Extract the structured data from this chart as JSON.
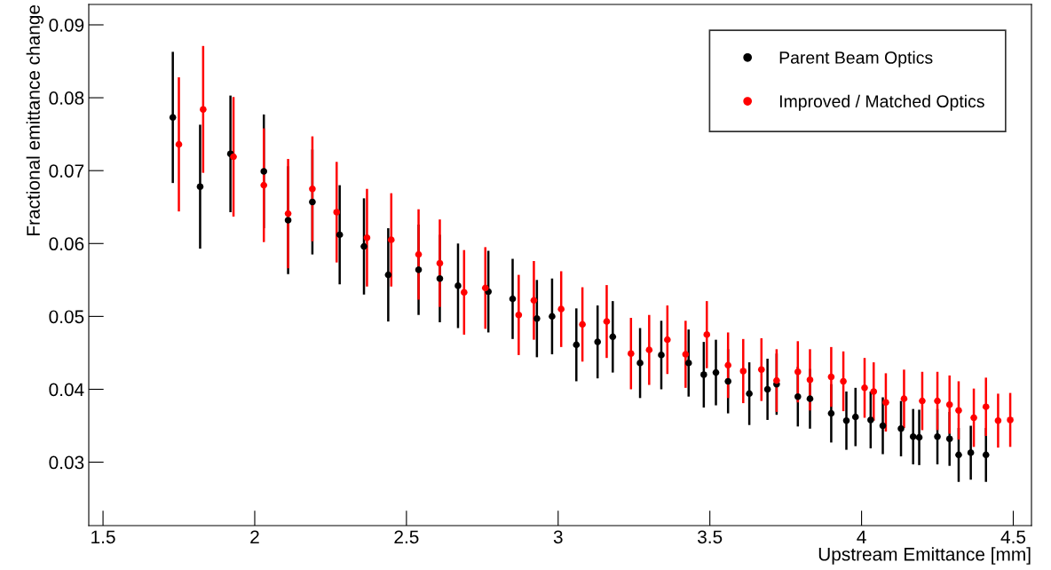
{
  "chart_data": {
    "type": "scatter",
    "xlabel": "Upstream Emittance [mm]",
    "ylabel": "Fractional emittance change",
    "xlim": [
      1.453,
      4.56
    ],
    "ylim": [
      0.0213,
      0.0928
    ],
    "xticks": [
      1.5,
      2,
      2.5,
      3,
      3.5,
      4,
      4.5
    ],
    "yticks": [
      0.03,
      0.04,
      0.05,
      0.06,
      0.07,
      0.08,
      0.09
    ],
    "grid": false,
    "legend": "top right",
    "marker": "circle",
    "series": [
      {
        "name": "Parent Beam Optics",
        "color": "#000000",
        "x": [
          1.73,
          1.82,
          1.92,
          2.03,
          2.11,
          2.19,
          2.28,
          2.36,
          2.44,
          2.54,
          2.61,
          2.67,
          2.77,
          2.85,
          2.93,
          2.98,
          3.06,
          3.13,
          3.18,
          3.27,
          3.34,
          3.43,
          3.48,
          3.52,
          3.56,
          3.63,
          3.69,
          3.72,
          3.79,
          3.83,
          3.9,
          3.95,
          3.98,
          4.03,
          4.07,
          4.13,
          4.17,
          4.19,
          4.25,
          4.29,
          4.32,
          4.36,
          4.41
        ],
        "values": [
          0.0773,
          0.0678,
          0.0723,
          0.0699,
          0.0632,
          0.0657,
          0.0612,
          0.0596,
          0.0557,
          0.0564,
          0.0552,
          0.0542,
          0.0534,
          0.0524,
          0.0497,
          0.05,
          0.0461,
          0.0465,
          0.0472,
          0.0436,
          0.0447,
          0.0436,
          0.042,
          0.0423,
          0.0411,
          0.0394,
          0.04,
          0.0407,
          0.039,
          0.0387,
          0.0367,
          0.0357,
          0.0362,
          0.0358,
          0.035,
          0.0346,
          0.0335,
          0.0334,
          0.0335,
          0.0332,
          0.031,
          0.0313,
          0.031
        ],
        "errors": [
          0.009,
          0.0085,
          0.008,
          0.0078,
          0.0074,
          0.0072,
          0.0068,
          0.0066,
          0.0064,
          0.0062,
          0.006,
          0.0058,
          0.0056,
          0.0055,
          0.0053,
          0.0052,
          0.005,
          0.005,
          0.0049,
          0.0048,
          0.0047,
          0.0046,
          0.0045,
          0.0045,
          0.0044,
          0.0043,
          0.0042,
          0.0042,
          0.0041,
          0.0041,
          0.004,
          0.004,
          0.004,
          0.0039,
          0.0039,
          0.0038,
          0.0038,
          0.0038,
          0.0038,
          0.0037,
          0.0037,
          0.0037,
          0.0037
        ]
      },
      {
        "name": "Improved / Matched Optics",
        "color": "#ff0000",
        "x": [
          1.75,
          1.83,
          1.93,
          2.03,
          2.11,
          2.19,
          2.27,
          2.37,
          2.45,
          2.54,
          2.61,
          2.69,
          2.76,
          2.87,
          2.92,
          3.01,
          3.08,
          3.16,
          3.24,
          3.3,
          3.36,
          3.42,
          3.49,
          3.56,
          3.61,
          3.67,
          3.72,
          3.79,
          3.83,
          3.9,
          3.94,
          4.01,
          4.04,
          4.08,
          4.14,
          4.2,
          4.25,
          4.29,
          4.32,
          4.37,
          4.41,
          4.45,
          4.49
        ],
        "values": [
          0.0736,
          0.0784,
          0.0719,
          0.068,
          0.0641,
          0.0675,
          0.0643,
          0.0608,
          0.0605,
          0.0585,
          0.0573,
          0.0533,
          0.0539,
          0.0502,
          0.0522,
          0.051,
          0.0489,
          0.0493,
          0.0449,
          0.0454,
          0.0468,
          0.0448,
          0.0475,
          0.0433,
          0.0425,
          0.0427,
          0.0412,
          0.0424,
          0.0413,
          0.0417,
          0.0411,
          0.0402,
          0.0397,
          0.0382,
          0.0387,
          0.0384,
          0.0384,
          0.0379,
          0.0371,
          0.0361,
          0.0376,
          0.0357,
          0.0358
        ],
        "errors": [
          0.0092,
          0.0087,
          0.0082,
          0.0078,
          0.0075,
          0.0072,
          0.0069,
          0.0067,
          0.0064,
          0.0062,
          0.006,
          0.0058,
          0.0056,
          0.0055,
          0.0054,
          0.0052,
          0.0051,
          0.005,
          0.0049,
          0.0048,
          0.0047,
          0.0046,
          0.0046,
          0.0045,
          0.0044,
          0.0043,
          0.0043,
          0.0042,
          0.0042,
          0.0041,
          0.0041,
          0.0041,
          0.004,
          0.004,
          0.004,
          0.004,
          0.004,
          0.004,
          0.004,
          0.004,
          0.004,
          0.0037,
          0.0037
        ]
      }
    ]
  }
}
